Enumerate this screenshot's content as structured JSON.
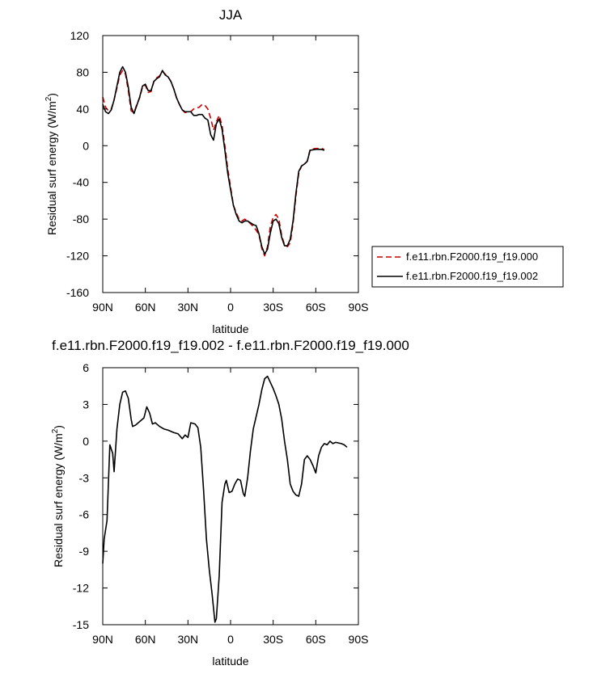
{
  "chart_data": [
    {
      "type": "line",
      "title": "JJA",
      "xlabel": "latitude",
      "ylabel": "Residual surf energy (W/m",
      "ylabel_sup": "2",
      "ylabel_close": ")",
      "xlim": [
        90,
        -90
      ],
      "ylim": [
        -160,
        120
      ],
      "xticks": [
        90,
        60,
        30,
        0,
        -30,
        -60,
        -90
      ],
      "xtick_labels": [
        "90N",
        "60N",
        "30N",
        "0",
        "30S",
        "60S",
        "90S"
      ],
      "yticks": [
        120,
        80,
        40,
        0,
        -40,
        -80,
        -120,
        -160
      ],
      "ytick_labels": [
        "120",
        "80",
        "40",
        "0",
        "-40",
        "-80",
        "-120",
        "-160"
      ],
      "grid": false,
      "legend_placement": "right",
      "series": [
        {
          "name": "f.e11.rbn.F2000.f19_f19.000",
          "color": "#cc0000",
          "dash": "dashed",
          "points": [
            [
              90,
              53
            ],
            [
              88,
              42
            ],
            [
              86,
              38
            ],
            [
              84,
              40
            ],
            [
              82,
              50
            ],
            [
              80,
              63
            ],
            [
              78,
              77
            ],
            [
              76,
              82
            ],
            [
              74,
              78
            ],
            [
              72,
              60
            ],
            [
              70,
              38
            ],
            [
              68,
              36
            ],
            [
              66,
              45
            ],
            [
              64,
              52
            ],
            [
              62,
              64
            ],
            [
              60,
              66
            ],
            [
              58,
              58
            ],
            [
              56,
              59
            ],
            [
              54,
              70
            ],
            [
              52,
              74
            ],
            [
              50,
              76
            ],
            [
              48,
              81
            ],
            [
              46,
              78
            ],
            [
              44,
              75
            ],
            [
              42,
              70
            ],
            [
              40,
              62
            ],
            [
              38,
              52
            ],
            [
              36,
              45
            ],
            [
              34,
              39
            ],
            [
              32,
              36
            ],
            [
              30,
              37
            ],
            [
              28,
              37
            ],
            [
              26,
              40
            ],
            [
              24,
              41
            ],
            [
              22,
              42
            ],
            [
              20,
              45
            ],
            [
              18,
              44
            ],
            [
              16,
              40
            ],
            [
              14,
              30
            ],
            [
              12,
              17
            ],
            [
              10,
              26
            ],
            [
              8,
              33
            ],
            [
              6,
              22
            ],
            [
              4,
              0
            ],
            [
              2,
              -25
            ],
            [
              0,
              -45
            ],
            [
              -2,
              -65
            ],
            [
              -4,
              -73
            ],
            [
              -6,
              -80
            ],
            [
              -8,
              -82
            ],
            [
              -10,
              -80
            ],
            [
              -12,
              -82
            ],
            [
              -14,
              -85
            ],
            [
              -16,
              -88
            ],
            [
              -18,
              -92
            ],
            [
              -20,
              -97
            ],
            [
              -22,
              -112
            ],
            [
              -24,
              -120
            ],
            [
              -26,
              -110
            ],
            [
              -28,
              -88
            ],
            [
              -30,
              -78
            ],
            [
              -32,
              -75
            ],
            [
              -34,
              -80
            ],
            [
              -36,
              -98
            ],
            [
              -38,
              -108
            ],
            [
              -40,
              -110
            ],
            [
              -42,
              -106
            ],
            [
              -44,
              -85
            ],
            [
              -46,
              -55
            ],
            [
              -48,
              -30
            ],
            [
              -50,
              -22
            ],
            [
              -52,
              -20
            ],
            [
              -54,
              -17
            ],
            [
              -56,
              -4
            ],
            [
              -60,
              -3
            ],
            [
              -64,
              -3
            ],
            [
              -66,
              -4
            ]
          ]
        },
        {
          "name": "f.e11.rbn.F2000.f19_f19.002",
          "color": "#000000",
          "dash": "solid",
          "points": [
            [
              90,
              45
            ],
            [
              88,
              37
            ],
            [
              86,
              35
            ],
            [
              84,
              39
            ],
            [
              82,
              50
            ],
            [
              80,
              65
            ],
            [
              78,
              80
            ],
            [
              76,
              86
            ],
            [
              74,
              80
            ],
            [
              72,
              64
            ],
            [
              70,
              42
            ],
            [
              68,
              35
            ],
            [
              66,
              44
            ],
            [
              64,
              53
            ],
            [
              62,
              65
            ],
            [
              60,
              67
            ],
            [
              58,
              60
            ],
            [
              56,
              60
            ],
            [
              54,
              70
            ],
            [
              52,
              73
            ],
            [
              50,
              75
            ],
            [
              48,
              82
            ],
            [
              46,
              77
            ],
            [
              44,
              75
            ],
            [
              42,
              70
            ],
            [
              40,
              62
            ],
            [
              38,
              52
            ],
            [
              36,
              45
            ],
            [
              34,
              39
            ],
            [
              32,
              37
            ],
            [
              30,
              37
            ],
            [
              28,
              37
            ],
            [
              26,
              33
            ],
            [
              24,
              33
            ],
            [
              22,
              34
            ],
            [
              20,
              34
            ],
            [
              18,
              30
            ],
            [
              16,
              28
            ],
            [
              14,
              12
            ],
            [
              12,
              6
            ],
            [
              10,
              24
            ],
            [
              8,
              29
            ],
            [
              6,
              18
            ],
            [
              4,
              -5
            ],
            [
              2,
              -30
            ],
            [
              0,
              -48
            ],
            [
              -2,
              -65
            ],
            [
              -4,
              -75
            ],
            [
              -6,
              -82
            ],
            [
              -8,
              -84
            ],
            [
              -10,
              -82
            ],
            [
              -12,
              -82
            ],
            [
              -14,
              -84
            ],
            [
              -16,
              -86
            ],
            [
              -18,
              -87
            ],
            [
              -20,
              -96
            ],
            [
              -22,
              -110
            ],
            [
              -24,
              -118
            ],
            [
              -26,
              -113
            ],
            [
              -28,
              -95
            ],
            [
              -30,
              -82
            ],
            [
              -32,
              -80
            ],
            [
              -34,
              -85
            ],
            [
              -36,
              -100
            ],
            [
              -38,
              -109
            ],
            [
              -40,
              -109
            ],
            [
              -42,
              -102
            ],
            [
              -44,
              -82
            ],
            [
              -46,
              -52
            ],
            [
              -48,
              -28
            ],
            [
              -50,
              -22
            ],
            [
              -52,
              -20
            ],
            [
              -54,
              -17
            ],
            [
              -56,
              -5
            ],
            [
              -60,
              -4
            ],
            [
              -64,
              -4
            ],
            [
              -66,
              -5
            ]
          ]
        }
      ]
    },
    {
      "type": "line",
      "title": "f.e11.rbn.F2000.f19_f19.002 - f.e11.rbn.F2000.f19_f19.000",
      "xlabel": "latitude",
      "ylabel": "Residual surf energy (W/m",
      "ylabel_sup": "2",
      "ylabel_close": ")",
      "xlim": [
        90,
        -90
      ],
      "ylim": [
        -15,
        6
      ],
      "xticks": [
        90,
        60,
        30,
        0,
        -30,
        -60,
        -90
      ],
      "xtick_labels": [
        "90N",
        "60N",
        "30N",
        "0",
        "30S",
        "60S",
        "90S"
      ],
      "yticks": [
        6,
        3,
        0,
        -3,
        -6,
        -9,
        -12,
        -15
      ],
      "ytick_labels": [
        "6",
        "3",
        "0",
        "-3",
        "-6",
        "-9",
        "-12",
        "-15"
      ],
      "grid": false,
      "series": [
        {
          "color": "#000000",
          "dash": "solid",
          "points": [
            [
              90,
              -10
            ],
            [
              89,
              -8
            ],
            [
              87,
              -6.5
            ],
            [
              85,
              -0.3
            ],
            [
              83,
              -1
            ],
            [
              82,
              -2.5
            ],
            [
              80,
              1
            ],
            [
              78,
              3
            ],
            [
              76,
              4
            ],
            [
              74,
              4.1
            ],
            [
              72,
              3.5
            ],
            [
              70,
              1.8
            ],
            [
              69,
              1.2
            ],
            [
              67,
              1.3
            ],
            [
              64,
              1.6
            ],
            [
              61,
              1.9
            ],
            [
              59,
              2.8
            ],
            [
              57,
              2.3
            ],
            [
              55,
              1.4
            ],
            [
              53,
              1.5
            ],
            [
              50,
              1.2
            ],
            [
              47,
              1.0
            ],
            [
              44,
              0.9
            ],
            [
              40,
              0.7
            ],
            [
              37,
              0.6
            ],
            [
              34,
              0.2
            ],
            [
              32,
              0.5
            ],
            [
              30,
              0.3
            ],
            [
              28,
              1.5
            ],
            [
              25,
              1.4
            ],
            [
              23,
              1.1
            ],
            [
              21,
              -0.5
            ],
            [
              19,
              -4
            ],
            [
              17,
              -8
            ],
            [
              15,
              -10.5
            ],
            [
              13,
              -12.5
            ],
            [
              11,
              -14.8
            ],
            [
              10,
              -14.5
            ],
            [
              8,
              -11
            ],
            [
              6,
              -5
            ],
            [
              4,
              -3.5
            ],
            [
              3,
              -3.2
            ],
            [
              1,
              -4.2
            ],
            [
              -1,
              -4.1
            ],
            [
              -3,
              -3.5
            ],
            [
              -5,
              -3.1
            ],
            [
              -7,
              -3.2
            ],
            [
              -9,
              -4.3
            ],
            [
              -10,
              -4.5
            ],
            [
              -12,
              -3
            ],
            [
              -14,
              -0.8
            ],
            [
              -16,
              1
            ],
            [
              -18,
              2
            ],
            [
              -20,
              3
            ],
            [
              -22,
              4.2
            ],
            [
              -24,
              5.1
            ],
            [
              -26,
              5.3
            ],
            [
              -28,
              4.8
            ],
            [
              -30,
              4.3
            ],
            [
              -32,
              3.7
            ],
            [
              -34,
              3.0
            ],
            [
              -36,
              1.8
            ],
            [
              -38,
              0
            ],
            [
              -40,
              -1.5
            ],
            [
              -42,
              -3.5
            ],
            [
              -44,
              -4.1
            ],
            [
              -46,
              -4.4
            ],
            [
              -48,
              -4.5
            ],
            [
              -50,
              -3.5
            ],
            [
              -52,
              -1.5
            ],
            [
              -54,
              -1.2
            ],
            [
              -56,
              -1.5
            ],
            [
              -58,
              -2
            ],
            [
              -60,
              -2.6
            ],
            [
              -62,
              -1.2
            ],
            [
              -64,
              -0.5
            ],
            [
              -66,
              -0.2
            ],
            [
              -68,
              -0.3
            ],
            [
              -70,
              0
            ],
            [
              -72,
              -0.2
            ],
            [
              -74,
              -0.1
            ],
            [
              -78,
              -0.2
            ],
            [
              -80,
              -0.3
            ],
            [
              -82,
              -0.5
            ]
          ]
        }
      ]
    }
  ]
}
